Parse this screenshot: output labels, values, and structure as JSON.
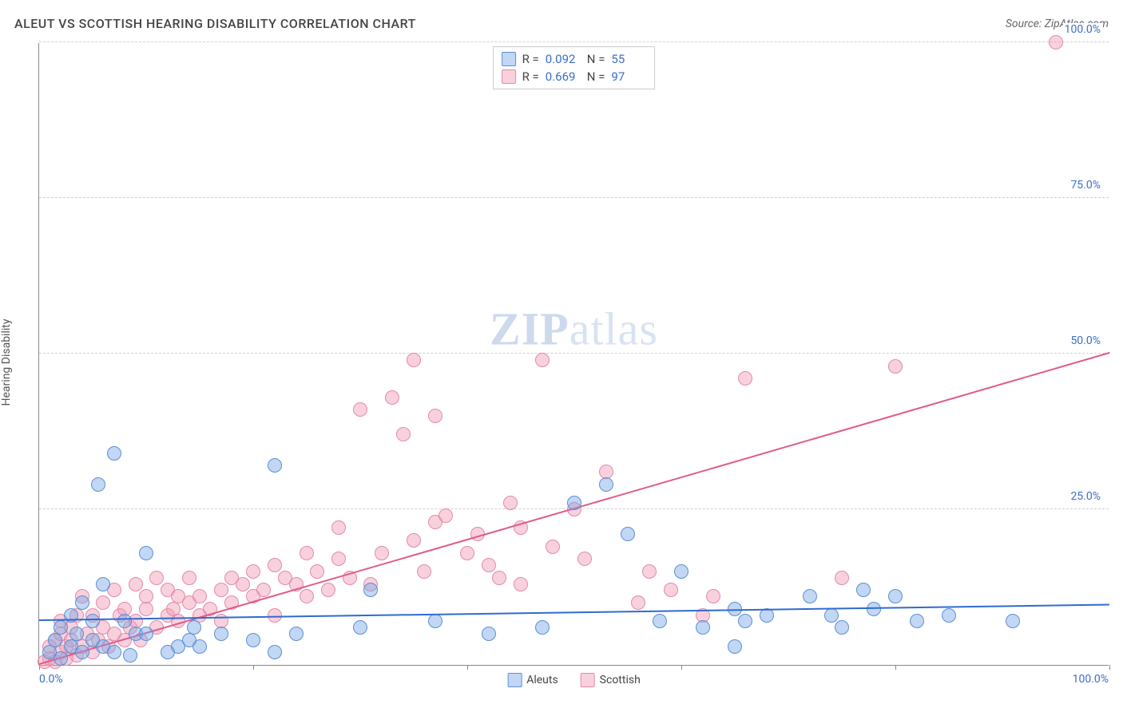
{
  "chart": {
    "type": "scatter",
    "title": "ALEUT VS SCOTTISH HEARING DISABILITY CORRELATION CHART",
    "source": "Source: ZipAtlas.com",
    "ylabel": "Hearing Disability",
    "watermark_zip": "ZIP",
    "watermark_atlas": "atlas",
    "xlim": [
      0,
      100
    ],
    "ylim": [
      0,
      100
    ],
    "x_tick_positions": [
      0,
      20,
      40,
      60,
      80,
      100
    ],
    "x_tick_labels": {
      "min": "0.0%",
      "max": "100.0%"
    },
    "y_ticks": [
      {
        "y": 25,
        "label": "25.0%"
      },
      {
        "y": 50,
        "label": "50.0%"
      },
      {
        "y": 75,
        "label": "75.0%"
      },
      {
        "y": 100,
        "label": "100.0%"
      }
    ],
    "grid_color": "#d0d0d0",
    "background_color": "#ffffff",
    "axis_label_color": "#3b6fc9",
    "point_radius": 9,
    "series": {
      "aleuts": {
        "label": "Aleuts",
        "fill": "rgba(120,167,228,0.45)",
        "stroke": "#5a8fd6",
        "trend": {
          "x1": 0,
          "y1": 7.0,
          "x2": 100,
          "y2": 9.5,
          "color": "#2e6bd0",
          "width": 2
        },
        "stats": {
          "R_label": "R =",
          "R_value": "0.092",
          "N_label": "N =",
          "N_value": "55"
        },
        "points": [
          [
            1,
            2
          ],
          [
            1.5,
            4
          ],
          [
            2,
            1
          ],
          [
            2,
            6
          ],
          [
            3,
            3
          ],
          [
            3,
            8
          ],
          [
            3.5,
            5
          ],
          [
            4,
            2
          ],
          [
            4,
            10
          ],
          [
            5,
            4
          ],
          [
            5,
            7
          ],
          [
            5.5,
            29
          ],
          [
            6,
            3
          ],
          [
            6,
            13
          ],
          [
            7,
            2
          ],
          [
            7,
            34
          ],
          [
            8,
            7
          ],
          [
            8.5,
            1.5
          ],
          [
            9,
            5
          ],
          [
            10,
            5
          ],
          [
            10,
            18
          ],
          [
            12,
            2
          ],
          [
            13,
            3
          ],
          [
            14,
            4
          ],
          [
            14.5,
            6
          ],
          [
            15,
            3
          ],
          [
            17,
            5
          ],
          [
            20,
            4
          ],
          [
            22,
            2
          ],
          [
            22,
            32
          ],
          [
            24,
            5
          ],
          [
            30,
            6
          ],
          [
            31,
            12
          ],
          [
            37,
            7
          ],
          [
            42,
            5
          ],
          [
            47,
            6
          ],
          [
            50,
            26
          ],
          [
            53,
            29
          ],
          [
            55,
            21
          ],
          [
            58,
            7
          ],
          [
            60,
            15
          ],
          [
            62,
            6
          ],
          [
            65,
            9
          ],
          [
            65,
            3
          ],
          [
            66,
            7
          ],
          [
            68,
            8
          ],
          [
            72,
            11
          ],
          [
            74,
            8
          ],
          [
            75,
            6
          ],
          [
            77,
            12
          ],
          [
            78,
            9
          ],
          [
            80,
            11
          ],
          [
            82,
            7
          ],
          [
            85,
            8
          ],
          [
            91,
            7
          ]
        ]
      },
      "scottish": {
        "label": "Scottish",
        "fill": "rgba(239,154,180,0.45)",
        "stroke": "#e28aa8",
        "trend": {
          "x1": 0,
          "y1": 0,
          "x2": 100,
          "y2": 50,
          "color": "#e05a8a",
          "width": 2
        },
        "stats": {
          "R_label": "R =",
          "R_value": "0.669",
          "N_label": "N =",
          "N_value": "97"
        },
        "points": [
          [
            0.5,
            0.5
          ],
          [
            1,
            1
          ],
          [
            1,
            3
          ],
          [
            1.5,
            0.5
          ],
          [
            1.5,
            4
          ],
          [
            2,
            2
          ],
          [
            2,
            5
          ],
          [
            2,
            7
          ],
          [
            2.5,
            1
          ],
          [
            2.5,
            3
          ],
          [
            3,
            4
          ],
          [
            3,
            6
          ],
          [
            3.5,
            1.5
          ],
          [
            3.5,
            8
          ],
          [
            4,
            3
          ],
          [
            4,
            11
          ],
          [
            4.5,
            5
          ],
          [
            5,
            2
          ],
          [
            5,
            8
          ],
          [
            5.5,
            4
          ],
          [
            6,
            6
          ],
          [
            6,
            10
          ],
          [
            6.5,
            3
          ],
          [
            7,
            5
          ],
          [
            7,
            12
          ],
          [
            7.5,
            8
          ],
          [
            8,
            4
          ],
          [
            8,
            9
          ],
          [
            8.5,
            6
          ],
          [
            9,
            7
          ],
          [
            9,
            13
          ],
          [
            9.5,
            4
          ],
          [
            10,
            9
          ],
          [
            10,
            11
          ],
          [
            11,
            6
          ],
          [
            11,
            14
          ],
          [
            12,
            8
          ],
          [
            12,
            12
          ],
          [
            12.5,
            9
          ],
          [
            13,
            7
          ],
          [
            13,
            11
          ],
          [
            14,
            10
          ],
          [
            14,
            14
          ],
          [
            15,
            11
          ],
          [
            15,
            8
          ],
          [
            16,
            9
          ],
          [
            17,
            12
          ],
          [
            17,
            7
          ],
          [
            18,
            14
          ],
          [
            18,
            10
          ],
          [
            19,
            13
          ],
          [
            20,
            11
          ],
          [
            20,
            15
          ],
          [
            21,
            12
          ],
          [
            22,
            16
          ],
          [
            22,
            8
          ],
          [
            23,
            14
          ],
          [
            24,
            13
          ],
          [
            25,
            18
          ],
          [
            25,
            11
          ],
          [
            26,
            15
          ],
          [
            27,
            12
          ],
          [
            28,
            17
          ],
          [
            28,
            22
          ],
          [
            29,
            14
          ],
          [
            30,
            41
          ],
          [
            31,
            13
          ],
          [
            32,
            18
          ],
          [
            33,
            43
          ],
          [
            34,
            37
          ],
          [
            35,
            20
          ],
          [
            35,
            49
          ],
          [
            36,
            15
          ],
          [
            37,
            23
          ],
          [
            37,
            40
          ],
          [
            38,
            24
          ],
          [
            40,
            18
          ],
          [
            41,
            21
          ],
          [
            42,
            16
          ],
          [
            43,
            14
          ],
          [
            44,
            26
          ],
          [
            45,
            22
          ],
          [
            47,
            49
          ],
          [
            48,
            19
          ],
          [
            50,
            25
          ],
          [
            51,
            17
          ],
          [
            53,
            31
          ],
          [
            56,
            10
          ],
          [
            57,
            15
          ],
          [
            59,
            12
          ],
          [
            62,
            8
          ],
          [
            63,
            11
          ],
          [
            66,
            46
          ],
          [
            75,
            14
          ],
          [
            80,
            48
          ],
          [
            95,
            100
          ],
          [
            45,
            13
          ]
        ]
      }
    }
  }
}
